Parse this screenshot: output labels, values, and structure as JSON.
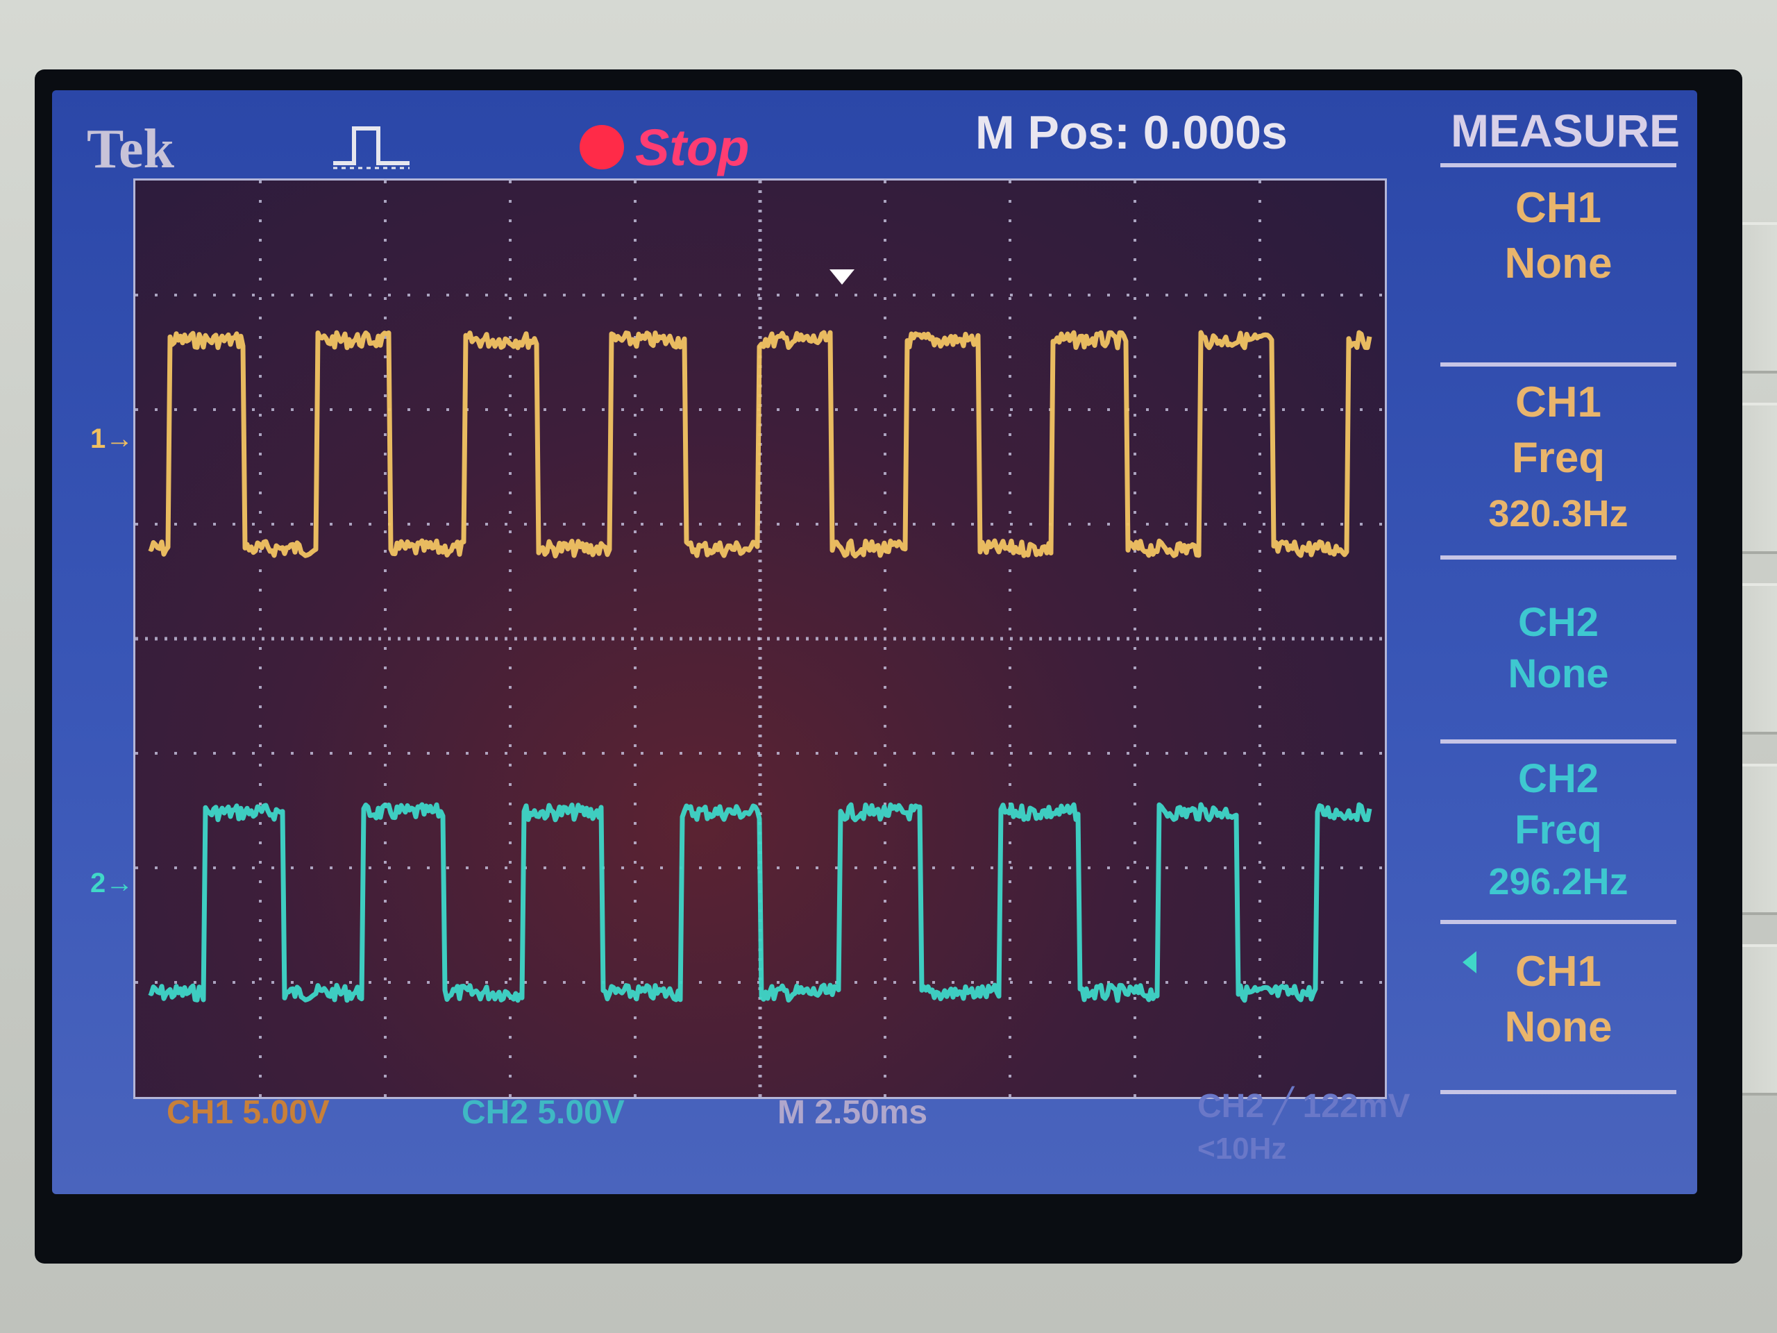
{
  "header": {
    "brand": "Tek",
    "trigger_icon": "trigger-pulse-icon",
    "run_status": "Stop",
    "horizontal_position": "M Pos: 0.000s"
  },
  "waveform": {
    "ch1_marker": "1→",
    "ch2_marker": "2→"
  },
  "status_bar": {
    "ch1_scale": "CH1 5.00V",
    "ch2_scale": "CH2 5.00V",
    "time_scale": "M 2.50ms",
    "trigger": "CH2 ╱ 122mV",
    "trigger_freq": "<10Hz"
  },
  "measure_menu": {
    "title": "MEASURE",
    "items": [
      {
        "source": "CH1",
        "type": "None",
        "value": ""
      },
      {
        "source": "CH1",
        "type": "Freq",
        "value": "320.3Hz"
      },
      {
        "source": "CH2",
        "type": "None",
        "value": ""
      },
      {
        "source": "CH2",
        "type": "Freq",
        "value": "296.2Hz"
      },
      {
        "source": "CH1",
        "type": "None",
        "value": ""
      }
    ]
  },
  "colors": {
    "ch1": "#f2c462",
    "ch2": "#3ed7c8",
    "stop_indicator": "#ff2b48",
    "screen_bg": "#2f4aa8"
  }
}
